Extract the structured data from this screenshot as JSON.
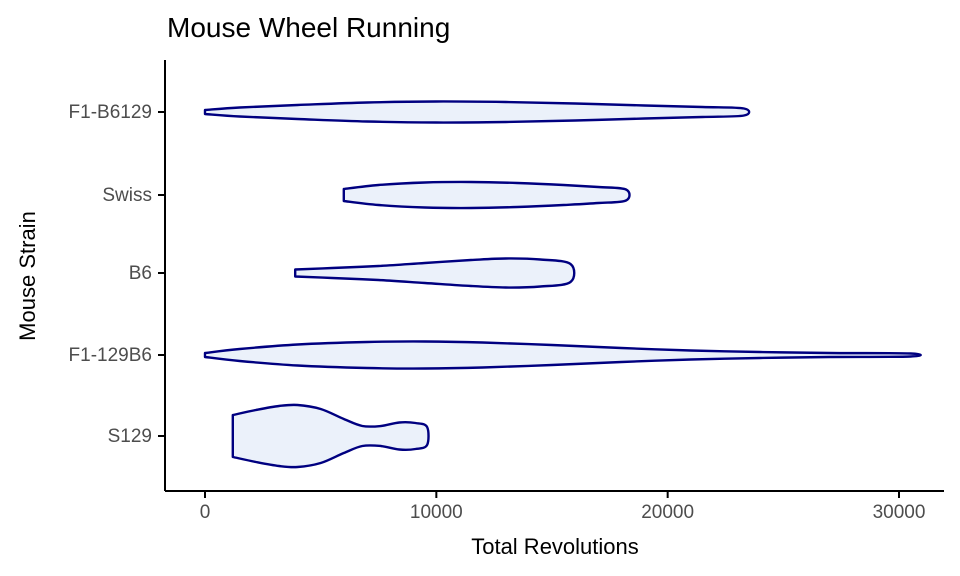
{
  "title": "Mouse Wheel Running",
  "chart_data": {
    "type": "violin",
    "title": "Mouse Wheel Running",
    "xlabel": "Total Revolutions",
    "ylabel": "Mouse Strain",
    "xlim": [
      0,
      30000
    ],
    "x_ticks": [
      0,
      10000,
      20000,
      30000
    ],
    "x_tick_labels": [
      "0",
      "10000",
      "20000",
      "30000"
    ],
    "categories": [
      "F1-B6129",
      "Swiss",
      "B6",
      "F1-129B6",
      "S129"
    ],
    "series": [
      {
        "name": "F1-B6129",
        "range": [
          0,
          23300
        ],
        "profile": [
          [
            0,
            2
          ],
          [
            1500,
            4.5
          ],
          [
            4000,
            7
          ],
          [
            7000,
            9.5
          ],
          [
            10000,
            10.5
          ],
          [
            13000,
            10
          ],
          [
            16000,
            8.5
          ],
          [
            19000,
            6.5
          ],
          [
            21500,
            5
          ],
          [
            23300,
            3.5
          ]
        ]
      },
      {
        "name": "Swiss",
        "range": [
          6000,
          18200
        ],
        "profile": [
          [
            6000,
            6
          ],
          [
            7500,
            10
          ],
          [
            9500,
            12.5
          ],
          [
            11500,
            13
          ],
          [
            13500,
            12
          ],
          [
            15500,
            10
          ],
          [
            17000,
            8
          ],
          [
            18200,
            5.5
          ]
        ]
      },
      {
        "name": "B6",
        "range": [
          3900,
          15800
        ],
        "profile": [
          [
            3900,
            3.5
          ],
          [
            5500,
            5
          ],
          [
            7500,
            7
          ],
          [
            9500,
            10
          ],
          [
            11500,
            13
          ],
          [
            13000,
            14.5
          ],
          [
            14500,
            13.5
          ],
          [
            15800,
            9
          ]
        ]
      },
      {
        "name": "F1-129B6",
        "range": [
          0,
          30500
        ],
        "profile": [
          [
            0,
            2
          ],
          [
            1500,
            6
          ],
          [
            4000,
            10.5
          ],
          [
            7000,
            13
          ],
          [
            9500,
            13.5
          ],
          [
            12000,
            12.5
          ],
          [
            15000,
            10
          ],
          [
            18000,
            7
          ],
          [
            21000,
            4.5
          ],
          [
            24000,
            3
          ],
          [
            27000,
            2
          ],
          [
            30500,
            1.5
          ]
        ]
      },
      {
        "name": "S129",
        "range": [
          1200,
          9600
        ],
        "profile": [
          [
            1200,
            21
          ],
          [
            2200,
            26
          ],
          [
            3200,
            30
          ],
          [
            4000,
            31
          ],
          [
            5000,
            27
          ],
          [
            6000,
            17
          ],
          [
            6800,
            10
          ],
          [
            7600,
            10
          ],
          [
            8400,
            13.5
          ],
          [
            9100,
            13
          ],
          [
            9600,
            9
          ]
        ]
      }
    ],
    "colors": {
      "stroke": "#000080",
      "fill": "#EBF1FA",
      "axis": "#000000",
      "tick_text": "#4D4D4D"
    }
  }
}
